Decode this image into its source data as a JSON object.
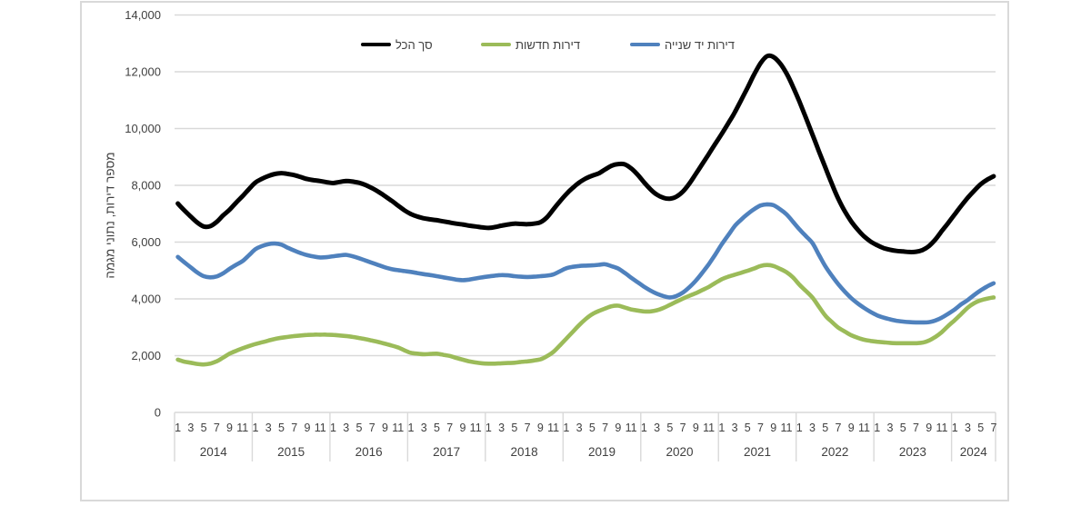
{
  "chart_data": {
    "type": "line",
    "title": "",
    "ylabel": "מספר דירות, נתוני מגמה",
    "ylim": [
      0,
      14000
    ],
    "ytick_step": 2000,
    "ytick_labels": [
      "0",
      "2,000",
      "4,000",
      "6,000",
      "8,000",
      "10,000",
      "12,000",
      "14,000"
    ],
    "grid": true,
    "legend_position": "top",
    "years": [
      "2014",
      "2015",
      "2016",
      "2017",
      "2018",
      "2019",
      "2020",
      "2021",
      "2022",
      "2023",
      "2024"
    ],
    "month_ticks": [
      1,
      3,
      5,
      7,
      9,
      11
    ],
    "x_start": "2014-01",
    "x_end": "2024-07",
    "series": [
      {
        "name": "סך הכל",
        "color": "#000000",
        "width": 5,
        "values": [
          7360,
          7120,
          6900,
          6690,
          6550,
          6560,
          6710,
          6940,
          7140,
          7390,
          7620,
          7870,
          8100,
          8230,
          8330,
          8400,
          8430,
          8400,
          8360,
          8290,
          8220,
          8180,
          8150,
          8110,
          8080,
          8120,
          8150,
          8130,
          8090,
          8010,
          7900,
          7770,
          7620,
          7460,
          7290,
          7120,
          6990,
          6900,
          6840,
          6800,
          6770,
          6730,
          6690,
          6650,
          6620,
          6580,
          6550,
          6520,
          6500,
          6530,
          6580,
          6620,
          6650,
          6640,
          6630,
          6650,
          6700,
          6870,
          7150,
          7430,
          7690,
          7910,
          8100,
          8240,
          8340,
          8420,
          8560,
          8690,
          8750,
          8740,
          8600,
          8380,
          8110,
          7860,
          7670,
          7560,
          7530,
          7600,
          7780,
          8060,
          8400,
          8750,
          9100,
          9460,
          9810,
          10180,
          10560,
          11000,
          11440,
          11900,
          12300,
          12550,
          12520,
          12300,
          11950,
          11480,
          10950,
          10380,
          9800,
          9210,
          8630,
          8060,
          7530,
          7090,
          6730,
          6440,
          6200,
          6020,
          5890,
          5790,
          5730,
          5690,
          5670,
          5650,
          5660,
          5720,
          5860,
          6090,
          6390,
          6680,
          6980,
          7280,
          7560,
          7810,
          8040,
          8200,
          8320
        ]
      },
      {
        "name": "דירות חדשות",
        "color": "#9BBB59",
        "width": 4.6,
        "values": [
          1860,
          1790,
          1750,
          1710,
          1690,
          1720,
          1800,
          1930,
          2070,
          2170,
          2260,
          2340,
          2410,
          2470,
          2530,
          2590,
          2630,
          2660,
          2690,
          2710,
          2730,
          2740,
          2740,
          2740,
          2730,
          2710,
          2690,
          2660,
          2620,
          2580,
          2530,
          2480,
          2420,
          2360,
          2290,
          2190,
          2100,
          2070,
          2050,
          2060,
          2070,
          2030,
          1990,
          1920,
          1860,
          1800,
          1760,
          1730,
          1720,
          1720,
          1730,
          1740,
          1750,
          1780,
          1800,
          1830,
          1870,
          1980,
          2130,
          2360,
          2600,
          2840,
          3080,
          3290,
          3460,
          3570,
          3660,
          3740,
          3760,
          3700,
          3630,
          3590,
          3560,
          3560,
          3600,
          3680,
          3790,
          3900,
          4010,
          4110,
          4200,
          4310,
          4420,
          4560,
          4690,
          4780,
          4850,
          4920,
          4990,
          5070,
          5160,
          5195,
          5160,
          5060,
          4940,
          4760,
          4500,
          4280,
          4050,
          3730,
          3410,
          3190,
          2990,
          2850,
          2720,
          2630,
          2560,
          2520,
          2490,
          2470,
          2450,
          2440,
          2440,
          2440,
          2440,
          2460,
          2530,
          2660,
          2830,
          3050,
          3250,
          3470,
          3690,
          3850,
          3950,
          4010,
          4050
        ]
      },
      {
        "name": "דירות יד שנייה",
        "color": "#4F81BD",
        "width": 4.6,
        "values": [
          5480,
          5290,
          5110,
          4930,
          4800,
          4760,
          4790,
          4900,
          5060,
          5200,
          5330,
          5540,
          5750,
          5860,
          5930,
          5950,
          5910,
          5800,
          5700,
          5610,
          5540,
          5490,
          5460,
          5470,
          5500,
          5530,
          5550,
          5500,
          5430,
          5350,
          5270,
          5190,
          5110,
          5050,
          5010,
          4980,
          4950,
          4910,
          4870,
          4840,
          4800,
          4760,
          4720,
          4680,
          4660,
          4680,
          4720,
          4760,
          4790,
          4820,
          4840,
          4830,
          4800,
          4780,
          4770,
          4780,
          4800,
          4820,
          4860,
          4970,
          5080,
          5130,
          5160,
          5170,
          5180,
          5200,
          5220,
          5150,
          5070,
          4920,
          4750,
          4590,
          4430,
          4290,
          4180,
          4100,
          4050,
          4100,
          4220,
          4410,
          4640,
          4920,
          5220,
          5560,
          5920,
          6240,
          6560,
          6790,
          6990,
          7160,
          7290,
          7330,
          7300,
          7160,
          6980,
          6720,
          6450,
          6210,
          5970,
          5560,
          5150,
          4820,
          4520,
          4260,
          4030,
          3840,
          3680,
          3540,
          3420,
          3340,
          3280,
          3230,
          3200,
          3180,
          3170,
          3170,
          3180,
          3240,
          3340,
          3480,
          3630,
          3810,
          3960,
          4140,
          4300,
          4440,
          4550
        ]
      }
    ],
    "legend_items_x": [
      397,
      529,
      693
    ]
  }
}
